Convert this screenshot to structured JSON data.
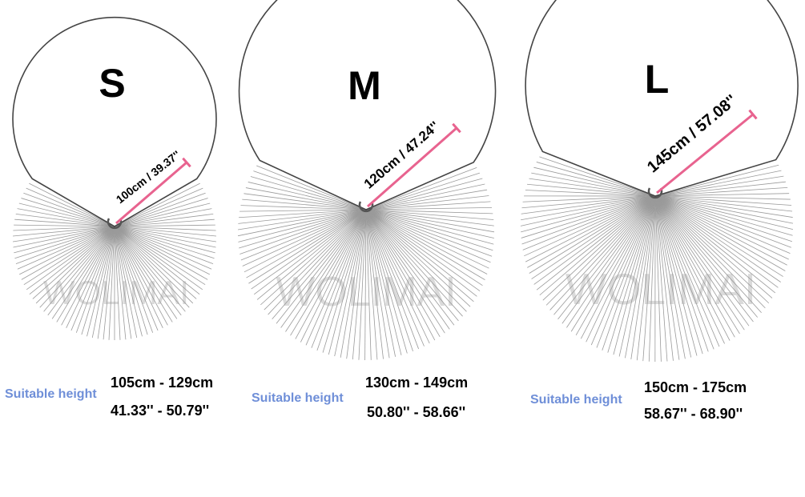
{
  "accent_color": "#e8638f",
  "suitable_color": "#6f8fd8",
  "watermark": "WOLIMAI",
  "sizes": [
    {
      "letter": "S",
      "measure": "100cm / 39.37''",
      "suitable_label": "Suitable height",
      "height_cm": "105cm - 129cm",
      "height_in": "41.33'' - 50.79''"
    },
    {
      "letter": "M",
      "measure": "120cm / 47.24''",
      "suitable_label": "Suitable height",
      "height_cm": "130cm - 149cm",
      "height_in": "50.80'' - 58.66''"
    },
    {
      "letter": "L",
      "measure": "145cm / 57.08''",
      "suitable_label": "Suitable height",
      "height_cm": "150cm - 175cm",
      "height_in": "58.67'' - 68.90''"
    }
  ]
}
